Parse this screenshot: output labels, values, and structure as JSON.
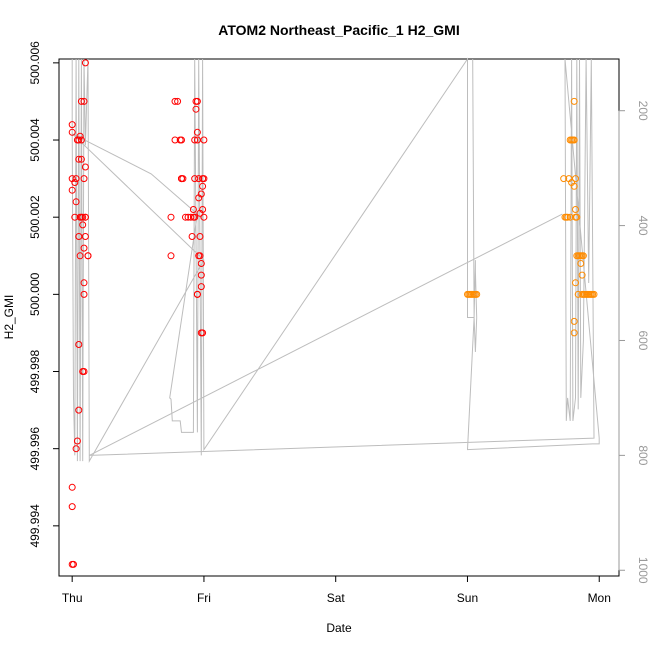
{
  "chart_data": {
    "type": "scatter",
    "title": "ATOM2 Northeast_Pacific_1 H2_GMI",
    "xlabel": "Date",
    "ylabel": "H2_GMI",
    "x_ticks": [
      "Thu",
      "Fri",
      "Sat",
      "Sun",
      "Mon"
    ],
    "xlim_days": [
      -0.1,
      4.15
    ],
    "ylim": [
      499.9927,
      500.0061
    ],
    "y_ticks": [
      "499.994",
      "499.996",
      "499.998",
      "500.000",
      "500.002",
      "500.004",
      "500.006"
    ],
    "y2_ticks": [
      "200",
      "400",
      "600",
      "800",
      "1000"
    ],
    "y2lim": [
      1010,
      110
    ],
    "grid": false,
    "legend": "none",
    "colors": {
      "red_points": "#ff0000",
      "orange_points": "#ff8c00",
      "pressure_line": "#bdbdbd",
      "axes": "#000000",
      "right_axis": "#999999"
    },
    "series": [
      {
        "color": "red",
        "points": [
          [
            0.0,
            499.993
          ],
          [
            0.01,
            499.993
          ],
          [
            0.0,
            499.9945
          ],
          [
            0.0,
            499.995
          ],
          [
            0.03,
            499.996
          ],
          [
            0.04,
            499.9962
          ],
          [
            0.05,
            499.997
          ],
          [
            0.05,
            499.9987
          ],
          [
            0.05,
            500.0015
          ],
          [
            0.06,
            500.001
          ],
          [
            0.06,
            500.002
          ],
          [
            0.02,
            500.002
          ],
          [
            0.03,
            500.0024
          ],
          [
            0.0,
            500.0027
          ],
          [
            0.02,
            500.0029
          ],
          [
            0.0,
            500.003
          ],
          [
            0.03,
            500.003
          ],
          [
            0.05,
            500.0035
          ],
          [
            0.05,
            500.004
          ],
          [
            0.04,
            500.004
          ],
          [
            0.0,
            500.0042
          ],
          [
            0.0,
            500.0044
          ],
          [
            0.07,
            500.0035
          ],
          [
            0.06,
            500.0041
          ],
          [
            0.07,
            500.004
          ],
          [
            0.07,
            500.005
          ],
          [
            0.09,
            500.005
          ],
          [
            0.1,
            500.006
          ],
          [
            0.08,
            500.0018
          ],
          [
            0.09,
            500.0012
          ],
          [
            0.09,
            500.0003
          ],
          [
            0.09,
            500.0
          ],
          [
            0.08,
            499.998
          ],
          [
            0.09,
            499.998
          ],
          [
            0.09,
            500.003
          ],
          [
            0.1,
            500.0033
          ],
          [
            0.1,
            500.002
          ],
          [
            0.1,
            500.0015
          ],
          [
            0.12,
            500.001
          ],
          [
            0.12,
            500.001
          ],
          [
            0.07,
            500.002
          ],
          [
            0.08,
            500.002
          ],
          [
            0.1,
            500.002
          ],
          [
            0.75,
            500.001
          ],
          [
            0.75,
            500.002
          ],
          [
            0.78,
            500.004
          ],
          [
            0.82,
            500.004
          ],
          [
            0.8,
            500.005
          ],
          [
            0.78,
            500.005
          ],
          [
            0.83,
            500.004
          ],
          [
            0.84,
            500.003
          ],
          [
            0.83,
            500.003
          ],
          [
            0.83,
            500.003
          ],
          [
            0.86,
            500.002
          ],
          [
            0.88,
            500.002
          ],
          [
            0.9,
            500.002
          ],
          [
            0.91,
            500.0015
          ],
          [
            0.92,
            500.0022
          ],
          [
            0.93,
            500.002
          ],
          [
            0.93,
            500.003
          ],
          [
            0.93,
            500.004
          ],
          [
            0.94,
            500.0048
          ],
          [
            0.94,
            500.005
          ],
          [
            0.95,
            500.005
          ],
          [
            0.95,
            500.0042
          ],
          [
            0.95,
            500.004
          ],
          [
            0.96,
            500.003
          ],
          [
            0.96,
            500.0025
          ],
          [
            0.97,
            500.0021
          ],
          [
            0.97,
            500.0015
          ],
          [
            0.97,
            500.001
          ],
          [
            0.98,
            500.0008
          ],
          [
            0.98,
            500.0005
          ],
          [
            0.98,
            500.0002
          ],
          [
            0.95,
            500.0
          ],
          [
            0.95,
            500.0
          ],
          [
            0.98,
            499.999
          ],
          [
            0.99,
            499.999
          ],
          [
            0.98,
            500.0026
          ],
          [
            0.99,
            500.0028
          ],
          [
            0.99,
            500.003
          ],
          [
            1.0,
            500.003
          ],
          [
            1.0,
            500.002
          ],
          [
            0.99,
            500.0022
          ],
          [
            1.0,
            500.004
          ],
          [
            0.96,
            500.001
          ],
          [
            0.92,
            500.002
          ]
        ]
      },
      {
        "color": "orange",
        "points": [
          [
            3.0,
            500.0
          ],
          [
            3.01,
            500.0
          ],
          [
            3.02,
            500.0
          ],
          [
            3.03,
            500.0
          ],
          [
            3.04,
            500.0
          ],
          [
            3.05,
            500.0
          ],
          [
            3.06,
            500.0
          ],
          [
            3.07,
            500.0
          ],
          [
            3.73,
            500.003
          ],
          [
            3.74,
            500.002
          ],
          [
            3.75,
            500.002
          ],
          [
            3.76,
            500.002
          ],
          [
            3.77,
            500.003
          ],
          [
            3.78,
            500.002
          ],
          [
            3.79,
            500.0029
          ],
          [
            3.78,
            500.004
          ],
          [
            3.79,
            500.004
          ],
          [
            3.8,
            500.004
          ],
          [
            3.81,
            500.005
          ],
          [
            3.81,
            500.004
          ],
          [
            3.81,
            500.0028
          ],
          [
            3.82,
            500.003
          ],
          [
            3.82,
            500.0022
          ],
          [
            3.82,
            500.002
          ],
          [
            3.83,
            500.002
          ],
          [
            3.83,
            500.001
          ],
          [
            3.82,
            500.0003
          ],
          [
            3.81,
            499.999
          ],
          [
            3.81,
            499.9993
          ],
          [
            3.84,
            500.0
          ],
          [
            3.84,
            500.001
          ],
          [
            3.85,
            500.001
          ],
          [
            3.86,
            500.001
          ],
          [
            3.87,
            500.001
          ],
          [
            3.88,
            500.001
          ],
          [
            3.87,
            500.0
          ],
          [
            3.88,
            500.0
          ],
          [
            3.89,
            500.0
          ],
          [
            3.9,
            500.0
          ],
          [
            3.91,
            500.0
          ],
          [
            3.92,
            500.0
          ],
          [
            3.93,
            500.0
          ],
          [
            3.94,
            500.0
          ],
          [
            3.95,
            500.0
          ],
          [
            3.96,
            500.0
          ],
          [
            3.86,
            500.0008
          ],
          [
            3.87,
            500.0005
          ]
        ]
      }
    ],
    "pressure_line": [
      [
        0.0,
        110
      ],
      [
        0.0,
        235
      ],
      [
        0.01,
        700
      ],
      [
        0.02,
        800
      ],
      [
        0.03,
        110
      ],
      [
        0.04,
        810
      ],
      [
        0.05,
        110
      ],
      [
        0.06,
        810
      ],
      [
        0.07,
        110
      ],
      [
        0.08,
        810
      ],
      [
        0.09,
        110
      ],
      [
        0.1,
        260
      ],
      [
        0.12,
        110
      ],
      [
        0.13,
        810
      ],
      [
        0.13,
        810
      ],
      [
        0.9,
        500
      ],
      [
        1.0,
        460
      ],
      [
        0.0,
        240
      ],
      [
        0.6,
        310
      ],
      [
        0.95,
        380
      ],
      [
        0.74,
        700
      ],
      [
        0.75,
        702
      ],
      [
        0.76,
        740
      ],
      [
        0.82,
        740
      ],
      [
        0.83,
        760
      ],
      [
        0.92,
        760
      ],
      [
        0.93,
        110
      ],
      [
        0.95,
        760
      ],
      [
        0.96,
        110
      ],
      [
        0.98,
        800
      ],
      [
        0.99,
        110
      ],
      [
        1.0,
        790
      ],
      [
        3.0,
        110
      ],
      [
        3.0,
        560
      ],
      [
        3.02,
        560
      ],
      [
        3.05,
        560
      ],
      [
        3.06,
        460
      ],
      [
        3.06,
        480
      ],
      [
        3.07,
        560
      ],
      [
        3.06,
        620
      ],
      [
        3.05,
        560
      ],
      [
        3.04,
        110
      ],
      [
        3.05,
        560
      ],
      [
        3.0,
        790
      ],
      [
        3.95,
        780
      ],
      [
        4.0,
        780
      ],
      [
        4.0,
        770
      ],
      [
        3.74,
        110
      ],
      [
        3.75,
        740
      ],
      [
        3.76,
        700
      ],
      [
        3.78,
        740
      ],
      [
        3.79,
        110
      ],
      [
        3.8,
        740
      ],
      [
        3.82,
        700
      ],
      [
        3.83,
        110
      ],
      [
        3.84,
        720
      ],
      [
        3.85,
        110
      ],
      [
        3.86,
        700
      ],
      [
        3.88,
        600
      ],
      [
        3.9,
        110
      ],
      [
        3.92,
        500
      ],
      [
        3.94,
        110
      ],
      [
        3.96,
        770
      ],
      [
        0.13,
        800
      ],
      [
        3.72,
        380
      ]
    ]
  }
}
